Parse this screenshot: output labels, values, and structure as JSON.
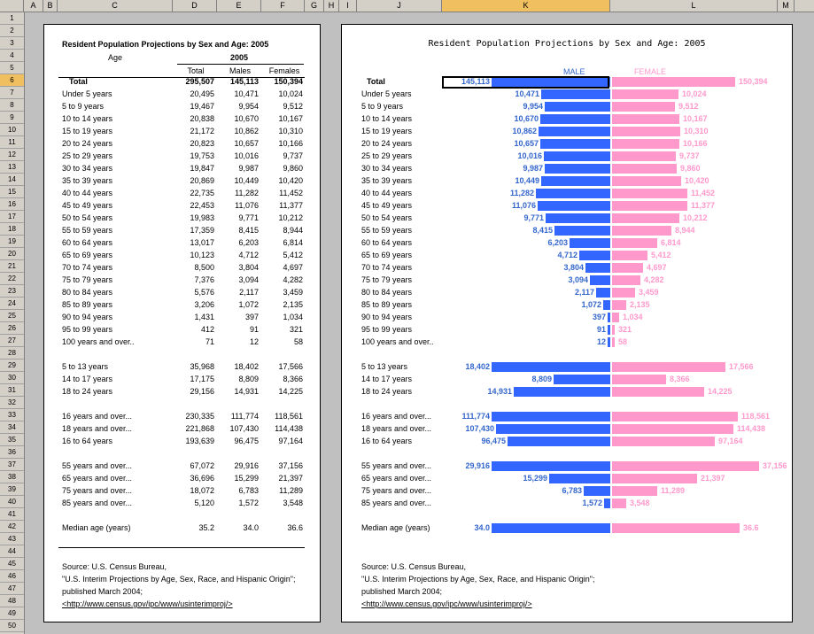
{
  "columns": [
    {
      "label": "",
      "w": 27
    },
    {
      "label": "A",
      "w": 22
    },
    {
      "label": "B",
      "w": 16
    },
    {
      "label": "C",
      "w": 130
    },
    {
      "label": "D",
      "w": 50
    },
    {
      "label": "E",
      "w": 50
    },
    {
      "label": "F",
      "w": 49
    },
    {
      "label": "G",
      "w": 22
    },
    {
      "label": "H",
      "w": 17
    },
    {
      "label": "I",
      "w": 20
    },
    {
      "label": "J",
      "w": 96
    },
    {
      "label": "K",
      "w": 190,
      "sel": true
    },
    {
      "label": "L",
      "w": 189
    },
    {
      "label": "M",
      "w": 19
    }
  ],
  "row_numbers": [
    "1",
    "2",
    "3",
    "4",
    "5",
    "6",
    "7",
    "8",
    "9",
    "10",
    "11",
    "12",
    "13",
    "14",
    "15",
    "16",
    "17",
    "18",
    "19",
    "20",
    "21",
    "22",
    "23",
    "24",
    "25",
    "26",
    "27",
    "28",
    "29",
    "30",
    "31",
    "32",
    "33",
    "34",
    "35",
    "36",
    "37",
    "38",
    "39",
    "40",
    "41",
    "42",
    "43",
    "44",
    "45",
    "46",
    "47",
    "48",
    "49",
    "50"
  ],
  "selected_row": "6",
  "table": {
    "title": "Resident Population Projections by Sex and Age: 2005",
    "age_header": "Age",
    "year_header": "2005",
    "col_total": "Total",
    "col_males": "Males",
    "col_females": "Females"
  },
  "chart": {
    "title": "Resident Population Projections by Sex and Age: 2005",
    "male_label": "MALE",
    "female_label": "FEMALE"
  },
  "chart_data": {
    "type": "bar",
    "title": "Resident Population Projections by Sex and Age: 2005",
    "orientation": "horizontal-butterfly",
    "series": [
      {
        "name": "MALE",
        "color": "#3366ff"
      },
      {
        "name": "FEMALE",
        "color": "#ff99cc"
      }
    ],
    "rows": [
      {
        "row": 6,
        "label": "Total",
        "total": "295,507",
        "male": "145,113",
        "female": "150,394",
        "mv": 145113,
        "fv": 150394,
        "bold": true
      },
      {
        "row": 7,
        "label": "Under 5 years",
        "total": "20,495",
        "male": "10,471",
        "female": "10,024",
        "mv": 10471,
        "fv": 10024
      },
      {
        "row": 8,
        "label": "5 to 9 years",
        "total": "19,467",
        "male": "9,954",
        "female": "9,512",
        "mv": 9954,
        "fv": 9512
      },
      {
        "row": 9,
        "label": "10 to 14 years",
        "total": "20,838",
        "male": "10,670",
        "female": "10,167",
        "mv": 10670,
        "fv": 10167
      },
      {
        "row": 10,
        "label": "15 to 19 years",
        "total": "21,172",
        "male": "10,862",
        "female": "10,310",
        "mv": 10862,
        "fv": 10310
      },
      {
        "row": 11,
        "label": "20 to 24 years",
        "total": "20,823",
        "male": "10,657",
        "female": "10,166",
        "mv": 10657,
        "fv": 10166
      },
      {
        "row": 12,
        "label": "25 to 29 years",
        "total": "19,753",
        "male": "10,016",
        "female": "9,737",
        "mv": 10016,
        "fv": 9737
      },
      {
        "row": 13,
        "label": "30 to 34 years",
        "total": "19,847",
        "male": "9,987",
        "female": "9,860",
        "mv": 9987,
        "fv": 9860
      },
      {
        "row": 14,
        "label": "35 to 39 years",
        "total": "20,869",
        "male": "10,449",
        "female": "10,420",
        "mv": 10449,
        "fv": 10420
      },
      {
        "row": 15,
        "label": "40 to 44 years",
        "total": "22,735",
        "male": "11,282",
        "female": "11,452",
        "mv": 11282,
        "fv": 11452
      },
      {
        "row": 16,
        "label": "45 to 49 years",
        "total": "22,453",
        "male": "11,076",
        "female": "11,377",
        "mv": 11076,
        "fv": 11377
      },
      {
        "row": 17,
        "label": "50 to 54 years",
        "total": "19,983",
        "male": "9,771",
        "female": "10,212",
        "mv": 9771,
        "fv": 10212
      },
      {
        "row": 18,
        "label": "55 to 59 years",
        "total": "17,359",
        "male": "8,415",
        "female": "8,944",
        "mv": 8415,
        "fv": 8944
      },
      {
        "row": 19,
        "label": "60 to 64 years",
        "total": "13,017",
        "male": "6,203",
        "female": "6,814",
        "mv": 6203,
        "fv": 6814
      },
      {
        "row": 20,
        "label": "65 to 69 years",
        "total": "10,123",
        "male": "4,712",
        "female": "5,412",
        "mv": 4712,
        "fv": 5412
      },
      {
        "row": 21,
        "label": "70 to 74 years",
        "total": "8,500",
        "male": "3,804",
        "female": "4,697",
        "mv": 3804,
        "fv": 4697
      },
      {
        "row": 22,
        "label": "75 to 79 years",
        "total": "7,376",
        "male": "3,094",
        "female": "4,282",
        "mv": 3094,
        "fv": 4282
      },
      {
        "row": 23,
        "label": "80 to 84 years",
        "total": "5,576",
        "male": "2,117",
        "female": "3,459",
        "mv": 2117,
        "fv": 3459
      },
      {
        "row": 24,
        "label": "85 to 89 years",
        "total": "3,206",
        "male": "1,072",
        "female": "2,135",
        "mv": 1072,
        "fv": 2135
      },
      {
        "row": 25,
        "label": "90 to 94 years",
        "total": "1,431",
        "male": "397",
        "female": "1,034",
        "mv": 397,
        "fv": 1034
      },
      {
        "row": 26,
        "label": "95 to 99 years",
        "total": "412",
        "male": "91",
        "female": "321",
        "mv": 91,
        "fv": 321
      },
      {
        "row": 27,
        "label": "100 years and over..",
        "total": "71",
        "male": "12",
        "female": "58",
        "mv": 12,
        "fv": 58
      },
      {
        "row": 29,
        "label": "5 to 13 years",
        "total": "35,968",
        "male": "18,402",
        "female": "17,566",
        "mv": 18402,
        "fv": 17566
      },
      {
        "row": 30,
        "label": "14 to 17 years",
        "total": "17,175",
        "male": "8,809",
        "female": "8,366",
        "mv": 8809,
        "fv": 8366
      },
      {
        "row": 31,
        "label": "18 to 24 years",
        "total": "29,156",
        "male": "14,931",
        "female": "14,225",
        "mv": 14931,
        "fv": 14225
      },
      {
        "row": 33,
        "label": "16 years and over...",
        "total": "230,335",
        "male": "111,774",
        "female": "118,561",
        "mv": 111774,
        "fv": 118561
      },
      {
        "row": 34,
        "label": "18 years and over...",
        "total": "221,868",
        "male": "107,430",
        "female": "114,438",
        "mv": 107430,
        "fv": 114438
      },
      {
        "row": 35,
        "label": "16 to 64 years",
        "total": "193,639",
        "male": "96,475",
        "female": "97,164",
        "mv": 96475,
        "fv": 97164
      },
      {
        "row": 37,
        "label": "55 years and over...",
        "total": "67,072",
        "male": "29,916",
        "female": "37,156",
        "mv": 29916,
        "fv": 37156
      },
      {
        "row": 38,
        "label": "65 years and over...",
        "total": "36,696",
        "male": "15,299",
        "female": "21,397",
        "mv": 15299,
        "fv": 21397
      },
      {
        "row": 39,
        "label": "75 years and over...",
        "total": "18,072",
        "male": "6,783",
        "female": "11,289",
        "mv": 6783,
        "fv": 11289
      },
      {
        "row": 40,
        "label": "85 years and over...",
        "total": "5,120",
        "male": "1,572",
        "female": "3,548",
        "mv": 1572,
        "fv": 3548
      },
      {
        "row": 42,
        "label": "Median age (years)",
        "total": "35.2",
        "male": "34.0",
        "female": "36.6",
        "mv": 34.0,
        "fv": 36.6
      }
    ]
  },
  "source": {
    "line1": "Source: U.S. Census Bureau,",
    "line2": "\"U.S. Interim Projections by Age, Sex, Race, and Hispanic Origin\";",
    "line3": "published March 2004;",
    "line4": "<http://www.census.gov/ipc/www/usinterimproj/>"
  }
}
